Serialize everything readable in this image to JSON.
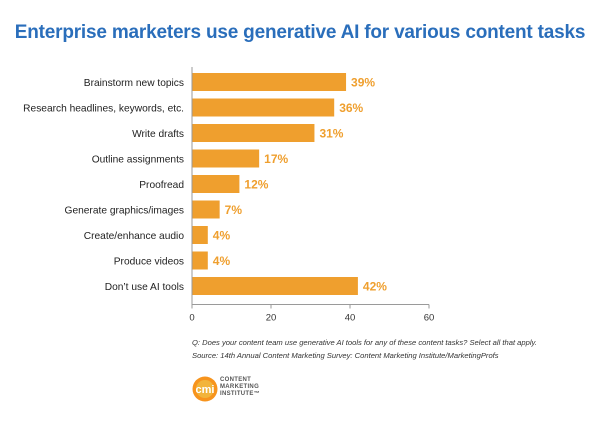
{
  "title": "Enterprise marketers use generative AI for various content tasks",
  "chart_data": {
    "type": "bar",
    "orientation": "horizontal",
    "categories": [
      "Brainstorm new topics",
      "Research headlines, keywords, etc.",
      "Write drafts",
      "Outline assignments",
      "Proofread",
      "Generate graphics/images",
      "Create/enhance audio",
      "Produce videos",
      "Don’t use AI tools"
    ],
    "values": [
      39,
      36,
      31,
      17,
      12,
      7,
      4,
      4,
      42
    ],
    "value_labels": [
      "39%",
      "36%",
      "31%",
      "17%",
      "12%",
      "7%",
      "4%",
      "4%",
      "42%"
    ],
    "xlim": [
      0,
      60
    ],
    "xticks": [
      "0",
      "20",
      "40",
      "60"
    ],
    "bar_color": "#ef9f2e",
    "label_color": "#ef9f2e",
    "title": "Enterprise marketers use generative AI for various content tasks"
  },
  "notes": {
    "question": "Q: Does your content team use generative AI tools for any of these content tasks? Select all that apply.",
    "source": "Source: 14th Annual Content Marketing Survey: Content Marketing Institute/MarketingProfs"
  },
  "logo": {
    "mark": "cmi",
    "line1": "CONTENT",
    "line2": "MARKETING",
    "line3": "INSTITUTE™",
    "colors": {
      "outer": "#f7941d",
      "inner": "#f2b43a"
    }
  }
}
